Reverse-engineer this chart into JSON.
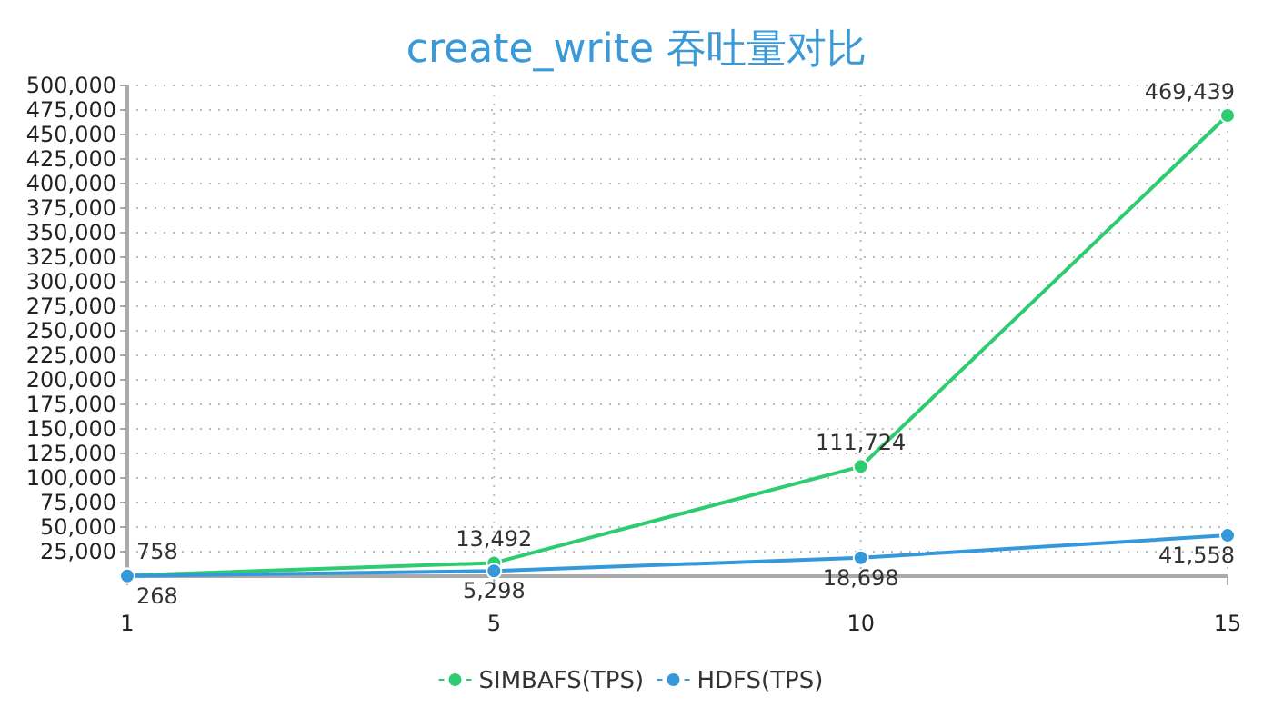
{
  "chart_data": {
    "type": "line",
    "title": "create_write 吞吐量对比",
    "categories": [
      "1",
      "5",
      "10",
      "15"
    ],
    "series": [
      {
        "name": "SIMBAFS(TPS)",
        "color": "#2ecc71",
        "values": [
          758,
          13492,
          111724,
          469439
        ],
        "value_labels": [
          "758",
          "13,492",
          "111,724",
          "469,439"
        ]
      },
      {
        "name": "HDFS(TPS)",
        "color": "#3498db",
        "values": [
          268,
          5298,
          18698,
          41558
        ],
        "value_labels": [
          "268",
          "5,298",
          "18,698",
          "41,558"
        ]
      }
    ],
    "ylim": [
      0,
      500000
    ],
    "yticks": [
      {
        "value": 25000,
        "label": "25,000"
      },
      {
        "value": 50000,
        "label": "50,000"
      },
      {
        "value": 75000,
        "label": "75,000"
      },
      {
        "value": 100000,
        "label": "100,000"
      },
      {
        "value": 125000,
        "label": "125,000"
      },
      {
        "value": 150000,
        "label": "150,000"
      },
      {
        "value": 175000,
        "label": "175,000"
      },
      {
        "value": 200000,
        "label": "200,000"
      },
      {
        "value": 225000,
        "label": "225,000"
      },
      {
        "value": 250000,
        "label": "250,000"
      },
      {
        "value": 275000,
        "label": "275,000"
      },
      {
        "value": 300000,
        "label": "300,000"
      },
      {
        "value": 325000,
        "label": "325,000"
      },
      {
        "value": 350000,
        "label": "350,000"
      },
      {
        "value": 375000,
        "label": "375,000"
      },
      {
        "value": 400000,
        "label": "400,000"
      },
      {
        "value": 425000,
        "label": "425,000"
      },
      {
        "value": 450000,
        "label": "450,000"
      },
      {
        "value": 475000,
        "label": "475,000"
      },
      {
        "value": 500000,
        "label": "500,000"
      }
    ],
    "grid": true,
    "legend": "bottom",
    "marker": "circle",
    "line_style": "solid"
  }
}
